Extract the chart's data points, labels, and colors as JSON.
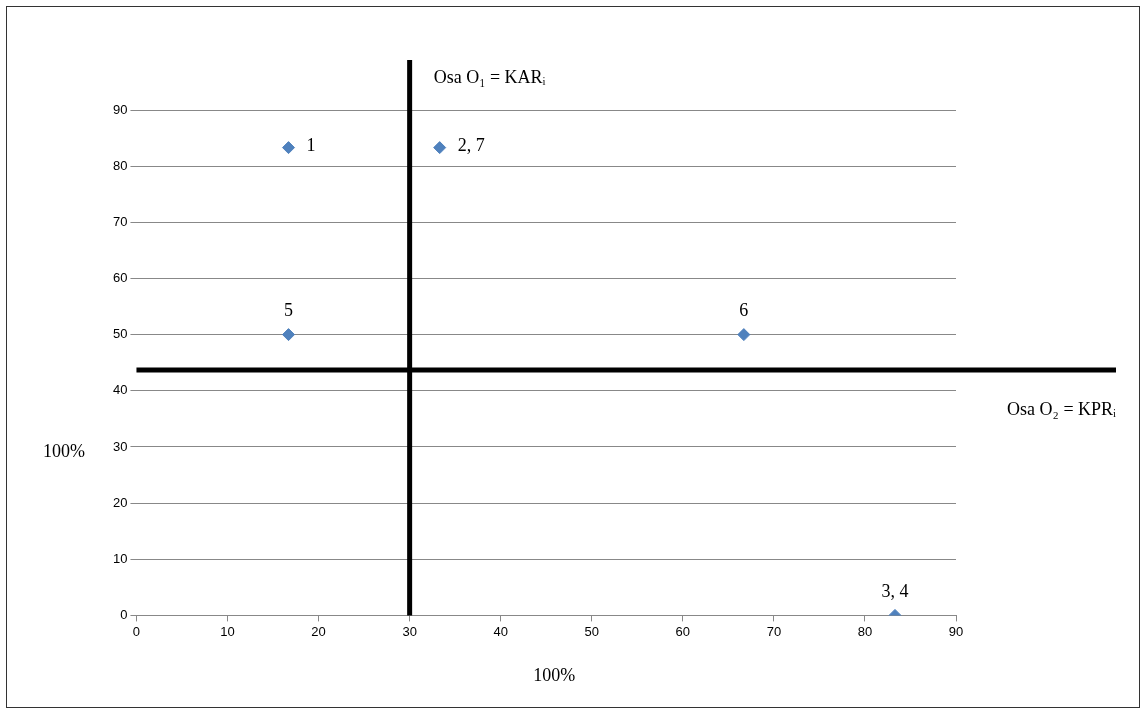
{
  "chart_data": {
    "type": "scatter",
    "xlabel": "100%",
    "ylabel": "100%",
    "x": [
      16.7,
      33.3,
      83.3,
      16.7,
      66.7
    ],
    "values": [
      83.3,
      83.3,
      0,
      50,
      50
    ],
    "color": "#4f81bd",
    "marker": "diamond",
    "xlim": [
      0,
      90
    ],
    "xticks": [
      0,
      10,
      20,
      30,
      40,
      50,
      60,
      70,
      80,
      90
    ],
    "ylim": [
      0,
      90
    ],
    "yticks": [
      0,
      10,
      20,
      30,
      40,
      50,
      60,
      70,
      80,
      90
    ],
    "grid": "y",
    "legend": false,
    "ref_lines": [
      {
        "axis": "x",
        "value": 30,
        "label": "Osa O₁ = KARᵢ",
        "color": "#000000"
      },
      {
        "axis": "y",
        "value": 43.7,
        "label": "Osa O₂ = KPRᵢ",
        "color": "#000000"
      }
    ],
    "annotations": [
      {
        "text": "1",
        "x": 16.7,
        "y": 83.3
      },
      {
        "text": "2, 7",
        "x": 33.3,
        "y": 83.3
      },
      {
        "text": "3, 4",
        "x": 83.3,
        "y": 0
      },
      {
        "text": "5",
        "x": 16.7,
        "y": 50
      },
      {
        "text": "6",
        "x": 66.7,
        "y": 50
      }
    ]
  }
}
